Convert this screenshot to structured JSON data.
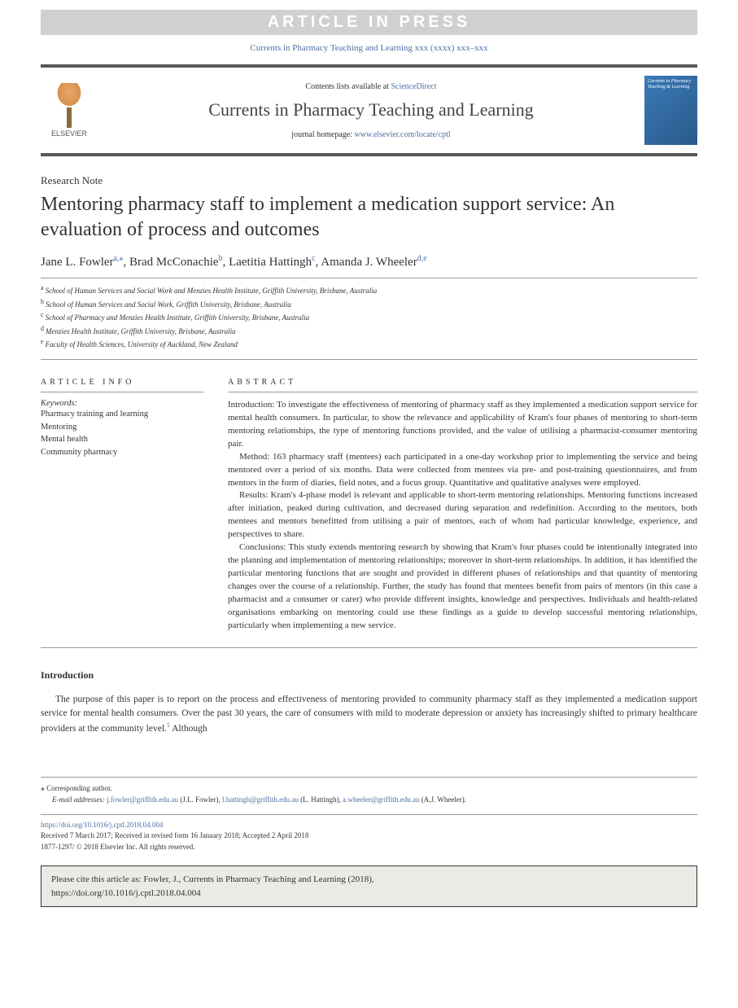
{
  "banner": "ARTICLE IN PRESS",
  "journal_ref": "Currents in Pharmacy Teaching and Learning xxx (xxxx) xxx–xxx",
  "header": {
    "publisher": "ELSEVIER",
    "contents_prefix": "Contents lists available at ",
    "contents_link": "ScienceDirect",
    "journal_title": "Currents in Pharmacy Teaching and Learning",
    "homepage_prefix": "journal homepage: ",
    "homepage_url": "www.elsevier.com/locate/cptl",
    "cover_text": "Currents in Pharmacy Teaching & Learning"
  },
  "article_type": "Research Note",
  "title": "Mentoring pharmacy staff to implement a medication support service: An evaluation of process and outcomes",
  "authors": [
    {
      "name": "Jane L. Fowler",
      "affs": "a,",
      "corr": "⁎"
    },
    {
      "name": "Brad McConachie",
      "affs": "b",
      "corr": ""
    },
    {
      "name": "Laetitia Hattingh",
      "affs": "c",
      "corr": ""
    },
    {
      "name": "Amanda J. Wheeler",
      "affs": "d,e",
      "corr": ""
    }
  ],
  "affiliations": [
    {
      "key": "a",
      "text": "School of Human Services and Social Work and Menzies Health Institute, Griffith University, Brisbane, Australia"
    },
    {
      "key": "b",
      "text": "School of Human Services and Social Work, Griffith University, Brisbane, Australia"
    },
    {
      "key": "c",
      "text": "School of Pharmacy and Menzies Health Institute, Griffith University, Brisbane, Australia"
    },
    {
      "key": "d",
      "text": "Menzies Health Institute, Griffith University, Brisbane, Australia"
    },
    {
      "key": "e",
      "text": "Faculty of Health Sciences, University of Auckland, New Zealand"
    }
  ],
  "info": {
    "heading": "ARTICLE INFO",
    "kw_label": "Keywords:",
    "keywords": [
      "Pharmacy training and learning",
      "Mentoring",
      "Mental health",
      "Community pharmacy"
    ]
  },
  "abstract": {
    "heading": "ABSTRACT",
    "paras": [
      "Introduction: To investigate the effectiveness of mentoring of pharmacy staff as they implemented a medication support service for mental health consumers. In particular, to show the relevance and applicability of Kram's four phases of mentoring to short-term mentoring relationships, the type of mentoring functions provided, and the value of utilising a pharmacist-consumer mentoring pair.",
      "Method: 163 pharmacy staff (mentees) each participated in a one-day workshop prior to implementing the service and being mentored over a period of six months. Data were collected from mentees via pre- and post-training questionnaires, and from mentors in the form of diaries, field notes, and a focus group. Quantitative and qualitative analyses were employed.",
      "Results: Kram's 4-phase model is relevant and applicable to short-term mentoring relationships. Mentoring functions increased after initiation, peaked during cultivation, and decreased during separation and redefinition. According to the mentors, both mentees and mentors benefitted from utilising a pair of mentors, each of whom had particular knowledge, experience, and perspectives to share.",
      "Conclusions: This study extends mentoring research by showing that Kram's four phases could be intentionally integrated into the planning and implementation of mentoring relationships; moreover in short-term relationships. In addition, it has identified the particular mentoring functions that are sought and provided in different phases of relationships and that quantity of mentoring changes over the course of a relationship. Further, the study has found that mentees benefit from pairs of mentors (in this case a pharmacist and a consumer or carer) who provide different insights, knowledge and perspectives. Individuals and health-related organisations embarking on mentoring could use these findings as a guide to develop successful mentoring relationships, particularly when implementing a new service."
    ]
  },
  "introduction": {
    "heading": "Introduction",
    "body_pre": "The purpose of this paper is to report on the process and effectiveness of mentoring provided to community pharmacy staff as they implemented a medication support service for mental health consumers. Over the past 30 years, the care of consumers with mild to moderate depression or anxiety has increasingly shifted to primary healthcare providers at the community level.",
    "ref1": "1",
    "body_post": " Although"
  },
  "footer": {
    "corr_mark": "⁎",
    "corr_text": " Corresponding author.",
    "email_label": "E-mail addresses: ",
    "emails": [
      {
        "addr": "j.fowler@griffith.edu.au",
        "who": " (J.L. Fowler), "
      },
      {
        "addr": "l.hattingh@griffith.edu.au",
        "who": " (L. Hattingh), "
      },
      {
        "addr": "a.wheeler@griffith.edu.au",
        "who": " (A.J. Wheeler)."
      }
    ]
  },
  "doi": {
    "url": "https://doi.org/10.1016/j.cptl.2018.04.004",
    "received": "Received 7 March 2017; Received in revised form 16 January 2018; Accepted 2 April 2018",
    "copyright": "1877-1297/ © 2018 Elsevier Inc. All rights reserved."
  },
  "citebox": {
    "line1": "Please cite this article as: Fowler, J., Currents in Pharmacy Teaching and Learning (2018),",
    "line2": "https://doi.org/10.1016/j.cptl.2018.04.004"
  },
  "colors": {
    "link": "#4a6fa5",
    "banner_bg": "#d0d0d0",
    "rule": "#58585a",
    "cite_bg": "#eceae4",
    "cover_bg": "#3a7ab8"
  }
}
